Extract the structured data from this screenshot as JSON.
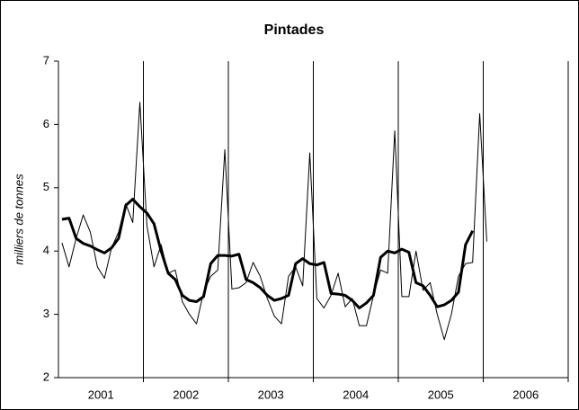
{
  "chart_data": {
    "type": "line",
    "title": "Pintades",
    "y_label": "milliers de tonnes",
    "categories": [
      null,
      null,
      null,
      null,
      null,
      null,
      null,
      null,
      null,
      null,
      null,
      null,
      null,
      null,
      null,
      null,
      null,
      null,
      null,
      null,
      null,
      null,
      null,
      null,
      null,
      null,
      null,
      null,
      null,
      null,
      null,
      null,
      null,
      null,
      null,
      null,
      null,
      null,
      null,
      null,
      null,
      null,
      null,
      null,
      null,
      null,
      null,
      null,
      null,
      null,
      null,
      null,
      null,
      null,
      null,
      null,
      null,
      null,
      null,
      null,
      null,
      null,
      null,
      null,
      null,
      null,
      null,
      null,
      null,
      null,
      null,
      null
    ],
    "year_labels": [
      "2001",
      "2002",
      "2003",
      "2004",
      "2005",
      "2006"
    ],
    "series": [
      {
        "color": "#000000",
        "width": 1,
        "values": [
          4.13,
          3.75,
          4.2,
          4.57,
          4.3,
          3.75,
          3.57,
          4.05,
          4.3,
          4.75,
          4.45,
          6.35,
          4.4,
          3.75,
          4.1,
          3.65,
          3.7,
          3.2,
          3.0,
          2.85,
          3.35,
          3.6,
          3.7,
          5.6,
          3.4,
          3.42,
          3.5,
          3.82,
          3.6,
          3.25,
          2.97,
          2.85,
          3.6,
          3.75,
          3.45,
          5.55,
          3.25,
          3.1,
          3.3,
          3.65,
          3.12,
          3.25,
          2.82,
          2.82,
          3.3,
          3.7,
          3.65,
          5.9,
          3.28,
          3.28,
          4.0,
          3.38,
          3.5,
          3.0,
          2.6,
          3.0,
          3.6,
          3.8,
          3.82,
          6.17,
          4.15,
          null,
          null,
          null,
          null,
          null,
          null,
          null,
          null,
          null,
          null,
          null
        ]
      },
      {
        "color": "#000000",
        "width": 3,
        "values": [
          4.5,
          4.52,
          4.2,
          4.12,
          4.08,
          4.02,
          3.97,
          4.05,
          4.2,
          4.72,
          4.82,
          4.7,
          4.6,
          4.43,
          4.0,
          3.65,
          3.55,
          3.3,
          3.22,
          3.2,
          3.28,
          3.8,
          3.93,
          3.93,
          3.92,
          3.95,
          3.55,
          3.5,
          3.42,
          3.3,
          3.22,
          3.25,
          3.3,
          3.8,
          3.88,
          3.8,
          3.78,
          3.82,
          3.33,
          3.32,
          3.3,
          3.22,
          3.1,
          3.18,
          3.3,
          3.9,
          4.0,
          3.97,
          4.03,
          3.98,
          3.5,
          3.45,
          3.3,
          3.12,
          3.15,
          3.22,
          3.35,
          4.1,
          4.32,
          null,
          null,
          null,
          null,
          null,
          null,
          null,
          null,
          null,
          null,
          null,
          null,
          null
        ]
      }
    ],
    "ylim": [
      2,
      7
    ],
    "yticks": [
      2,
      3,
      4,
      5,
      6,
      7
    ],
    "x_grid": true
  }
}
